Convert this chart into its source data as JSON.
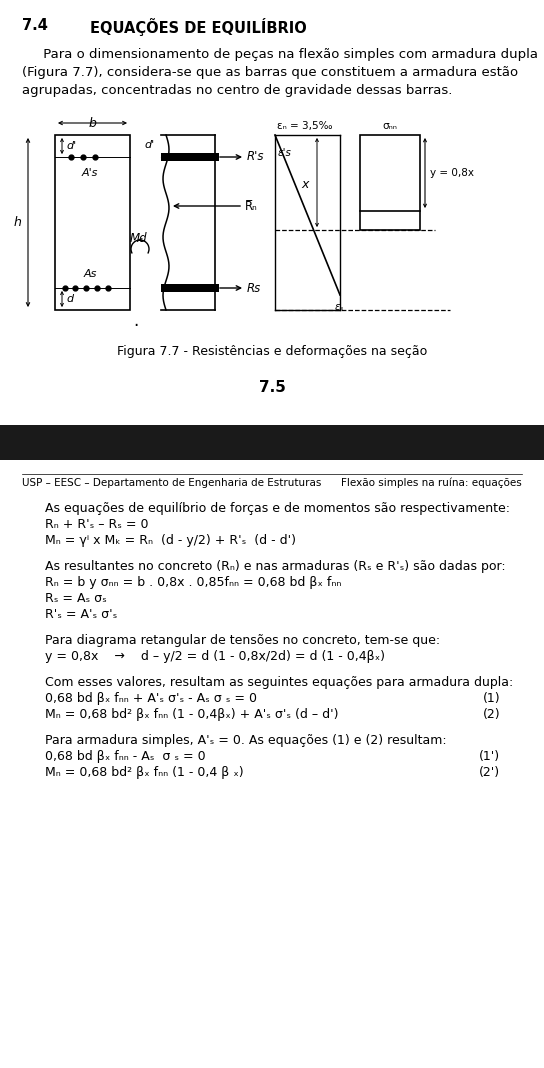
{
  "title_section": "7.4",
  "title_text": "EQUAÇÕES DE EQUILÍBRIO",
  "para1_lines": [
    "     Para o dimensionamento de peças na flexão simples com armadura dupla",
    "(Figura 7.7), considera-se que as barras que constituem a armadura estão",
    "agrupadas, concentradas no centro de gravidade dessas barras."
  ],
  "fig_caption": "Figura 7.7 - Resistências e deformações na seção",
  "section_num": "7.5",
  "footer_left": "USP – EESC – Departamento de Engenharia de Estruturas",
  "footer_right": "Flexão simples na ruína: equações",
  "dark_bar_color": "#1a1a1a",
  "bg_color": "#ffffff",
  "page2_text_lines": [
    [
      "normal",
      "As equações de equilíbrio de forças e de momentos são respectivamente:"
    ],
    [
      "eq",
      "Rₙ + R'ₛ – Rₛ = 0"
    ],
    [
      "eq",
      "Mₙ = γⁱ x Mₖ = Rₙ  (d - y/2) + R'ₛ  (d - d')"
    ],
    [
      "blank",
      ""
    ],
    [
      "normal",
      "As resultantes no concreto (Rₙ) e nas armaduras (Rₛ e R'ₛ) são dadas por:"
    ],
    [
      "eq",
      "Rₙ = b y σₙₙ = b . 0,8x . 0,85fₙₙ = 0,68 bd βₓ fₙₙ"
    ],
    [
      "eq",
      "Rₛ = Aₛ σₛ"
    ],
    [
      "eq",
      "R'ₛ = A'ₛ σ'ₛ"
    ],
    [
      "blank",
      ""
    ],
    [
      "normal",
      "Para diagrama retangular de tensões no concreto, tem-se que:"
    ],
    [
      "eq_inline",
      "y = 0,8x    →    d – y/2 = d (1 - 0,8x/2d) = d (1 - 0,4βₓ)"
    ],
    [
      "blank",
      ""
    ],
    [
      "normal",
      "Com esses valores, resultam as seguintes equações para armadura dupla:"
    ],
    [
      "eq_num",
      "0,68 bd βₓ fₙₙ + A'ₛ σ'ₛ - Aₛ σ ₛ = 0",
      "(1)"
    ],
    [
      "eq_num",
      "Mₙ = 0,68 bd² βₓ fₙₙ (1 - 0,4βₓ) + A'ₛ σ'ₛ (d – d')",
      "(2)"
    ],
    [
      "blank",
      ""
    ],
    [
      "normal",
      "Para armadura simples, A'ₛ = 0. As equações (1) e (2) resultam:"
    ],
    [
      "eq_num",
      "0,68 bd βₓ fₙₙ - Aₛ  σ ₛ = 0",
      "(1')"
    ],
    [
      "eq_num",
      "Mₙ = 0,68 bd² βₓ fₙₙ (1 - 0,4 β ₓ)",
      "(2')"
    ]
  ]
}
